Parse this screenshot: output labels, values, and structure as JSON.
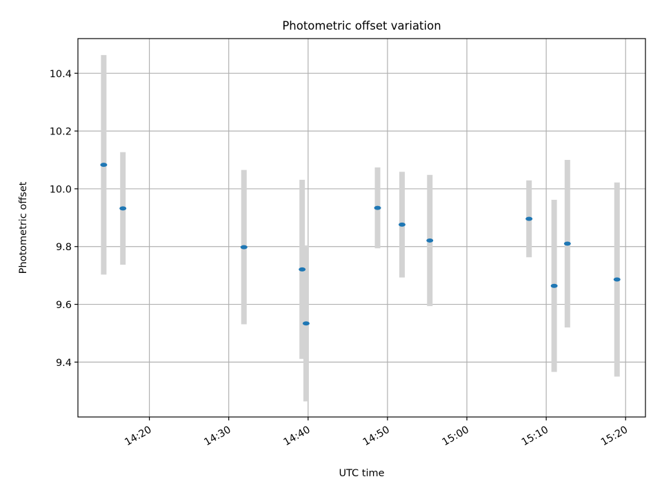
{
  "chart_data": {
    "type": "scatter",
    "title": "Photometric offset variation",
    "xlabel": "UTC time",
    "ylabel": "Photometric offset",
    "grid": true,
    "legend": "none",
    "xlim": [
      "14:11:00",
      "15:22:30"
    ],
    "ylim": [
      9.21,
      10.52
    ],
    "x_ticks": [
      "14:20",
      "14:30",
      "14:40",
      "14:50",
      "15:00",
      "15:10",
      "15:20"
    ],
    "y_ticks": [
      9.4,
      9.6,
      9.8,
      10.0,
      10.2,
      10.4
    ],
    "series": [
      {
        "points": [
          {
            "time": "14:14:15",
            "y": 10.083,
            "err": 0.38
          },
          {
            "time": "14:16:40",
            "y": 9.932,
            "err": 0.195
          },
          {
            "time": "14:31:55",
            "y": 9.798,
            "err": 0.267
          },
          {
            "time": "14:39:15",
            "y": 9.721,
            "err": 0.31
          },
          {
            "time": "14:39:45",
            "y": 9.534,
            "err": 0.27
          },
          {
            "time": "14:48:45",
            "y": 9.934,
            "err": 0.14
          },
          {
            "time": "14:51:50",
            "y": 9.876,
            "err": 0.183
          },
          {
            "time": "14:55:20",
            "y": 9.821,
            "err": 0.227
          },
          {
            "time": "15:07:50",
            "y": 9.896,
            "err": 0.133
          },
          {
            "time": "15:11:00",
            "y": 9.664,
            "err": 0.298
          },
          {
            "time": "15:12:40",
            "y": 9.81,
            "err": 0.29
          },
          {
            "time": "15:18:55",
            "y": 9.686,
            "err": 0.336
          }
        ]
      }
    ],
    "colors": {
      "marker": "#1f77b4",
      "errorbar": "#d3d3d3",
      "grid": "#b0b0b0",
      "axes": "#000000"
    }
  }
}
